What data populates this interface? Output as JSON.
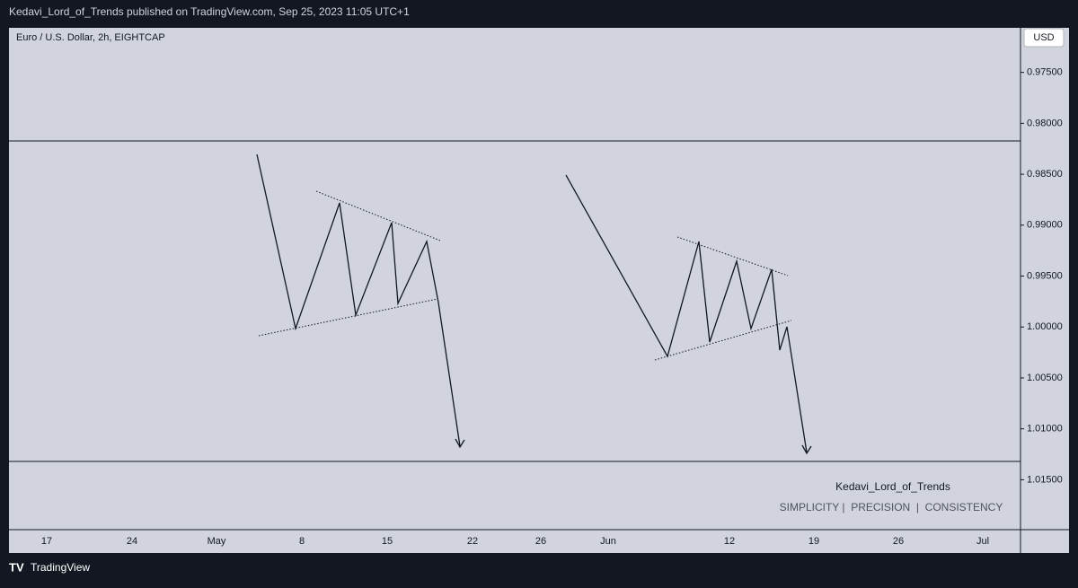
{
  "header": {
    "text": "Kedavi_Lord_of_Trends published on TradingView.com, Sep 25, 2023 11:05 UTC+1"
  },
  "chart_data": {
    "type": "line",
    "title": "Euro / U.S. Dollar, 2h, EIGHTCAP",
    "currency": "USD",
    "categories": [
      "17",
      "24",
      "May",
      "8",
      "15",
      "22",
      "26",
      "Jun",
      "12",
      "19",
      "26",
      "Jul"
    ],
    "ylim": [
      0.97071,
      1.0199
    ],
    "inverted": true,
    "yticks": [
      {
        "value": 0.975,
        "label": "0.97500"
      },
      {
        "value": 0.98,
        "label": "0.98000"
      },
      {
        "value": 0.985,
        "label": "0.98500"
      },
      {
        "value": 0.99,
        "label": "0.99000"
      },
      {
        "value": 0.995,
        "label": "0.99500"
      },
      {
        "value": 1.0,
        "label": "1.00000"
      },
      {
        "value": 1.005,
        "label": "1.00500"
      },
      {
        "value": 1.01,
        "label": "1.01000"
      },
      {
        "value": 1.015,
        "label": "1.01500"
      }
    ],
    "annotations": [
      "Kedavi_Lord_of_Trends",
      "SIMPLICITY |  PRECISION  |  CONSISTENCY"
    ]
  },
  "footer": {
    "brand": "TradingView"
  }
}
